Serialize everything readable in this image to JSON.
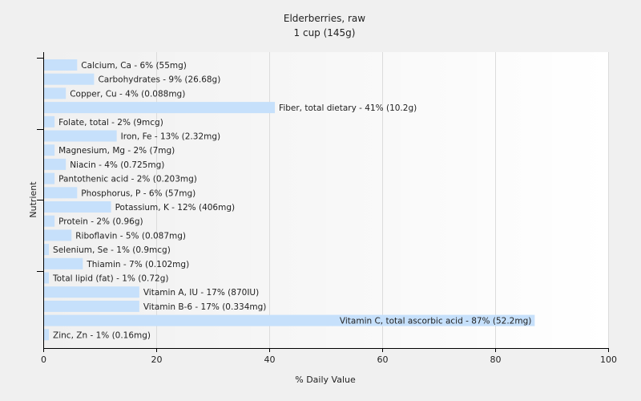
{
  "chart_data": {
    "type": "bar",
    "orientation": "horizontal",
    "title": "Elderberries, raw",
    "subtitle": "1 cup (145g)",
    "xlabel": "% Daily Value",
    "ylabel": "Nutrient",
    "xlim": [
      0,
      100
    ],
    "xticks": [
      0,
      20,
      40,
      60,
      80,
      100
    ],
    "grid": true,
    "bar_color": "#c6e0fb",
    "categories": [
      "Calcium, Ca",
      "Carbohydrates",
      "Copper, Cu",
      "Fiber, total dietary",
      "Folate, total",
      "Iron, Fe",
      "Magnesium, Mg",
      "Niacin",
      "Pantothenic acid",
      "Phosphorus, P",
      "Potassium, K",
      "Protein",
      "Riboflavin",
      "Selenium, Se",
      "Thiamin",
      "Total lipid (fat)",
      "Vitamin A, IU",
      "Vitamin B-6",
      "Vitamin C, total ascorbic acid",
      "Zinc, Zn"
    ],
    "values": [
      6,
      9,
      4,
      41,
      2,
      13,
      2,
      4,
      2,
      6,
      12,
      2,
      5,
      1,
      7,
      1,
      17,
      17,
      87,
      1
    ],
    "labels": [
      "Calcium, Ca - 6% (55mg)",
      "Carbohydrates - 9% (26.68g)",
      "Copper, Cu - 4% (0.088mg)",
      "Fiber, total dietary - 41% (10.2g)",
      "Folate, total - 2% (9mcg)",
      "Iron, Fe - 13% (2.32mg)",
      "Magnesium, Mg - 2% (7mg)",
      "Niacin - 4% (0.725mg)",
      "Pantothenic acid - 2% (0.203mg)",
      "Phosphorus, P - 6% (57mg)",
      "Potassium, K - 12% (406mg)",
      "Protein - 2% (0.96g)",
      "Riboflavin - 5% (0.087mg)",
      "Selenium, Se - 1% (0.9mcg)",
      "Thiamin - 7% (0.102mg)",
      "Total lipid (fat) - 1% (0.72g)",
      "Vitamin A, IU - 17% (870IU)",
      "Vitamin B-6 - 17% (0.334mg)",
      "Vitamin C, total ascorbic acid - 87% (52.2mg)",
      "Zinc, Zn - 1% (0.16mg)"
    ]
  }
}
